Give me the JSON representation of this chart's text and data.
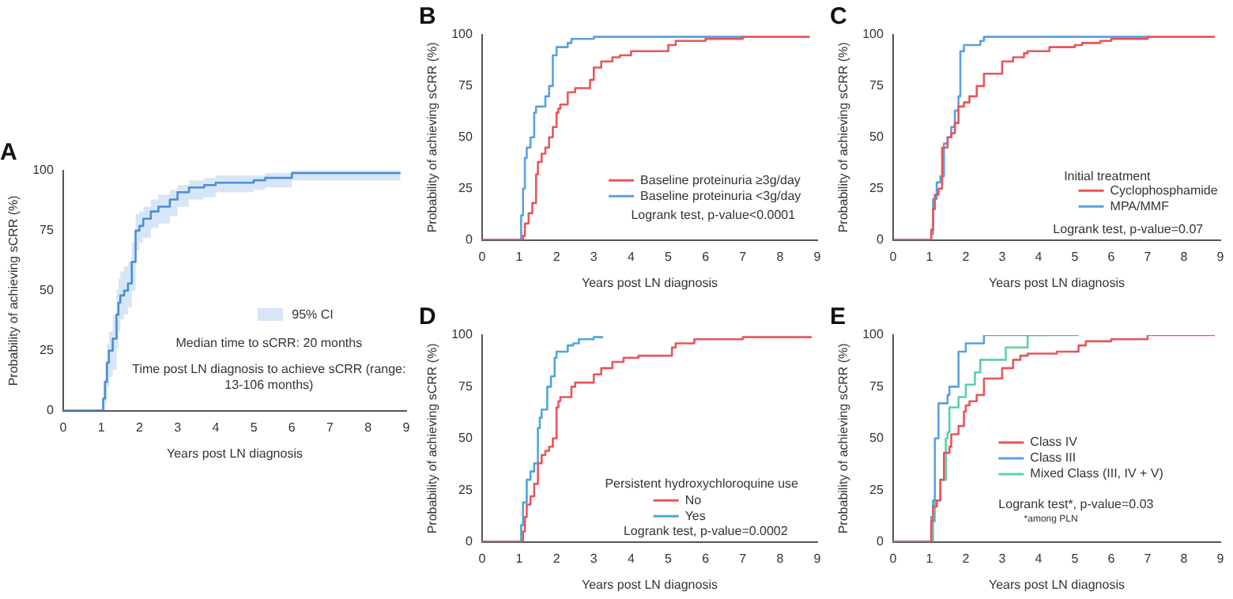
{
  "chart_data": [
    {
      "type": "step",
      "title": "A",
      "xlabel": "Years post LN diagnosis",
      "ylabel": "Probability of achieving sCRR (%)",
      "xlim": [
        0,
        9
      ],
      "xticks": [
        0,
        1,
        2,
        3,
        4,
        5,
        6,
        7,
        8,
        9
      ],
      "ylim": [
        0,
        100
      ],
      "yticks": [
        0,
        25,
        50,
        75,
        100
      ],
      "grid": false,
      "annotations": [
        "95% CI",
        "Median time to sCRR: 20 months",
        "Time post LN diagnosis to achieve sCRR (range: 13-106 months)"
      ],
      "series": [
        {
          "color": "#4a8fd8",
          "x": [
            0,
            1.05,
            1.1,
            1.15,
            1.2,
            1.3,
            1.4,
            1.45,
            1.5,
            1.6,
            1.7,
            1.8,
            1.9,
            2.0,
            2.1,
            2.3,
            2.5,
            2.8,
            3.0,
            3.3,
            3.7,
            4.0,
            5.0,
            5.3,
            6.0,
            7.0,
            8.85
          ],
          "values": [
            0,
            0,
            5,
            12,
            20,
            25,
            30,
            40,
            45,
            48,
            50,
            53,
            62,
            75,
            77,
            80,
            83,
            85,
            88,
            91,
            93,
            94,
            95,
            96,
            97,
            99,
            99
          ],
          "lower": [
            0,
            0,
            0,
            3,
            10,
            14,
            17,
            26,
            33,
            38,
            40,
            43,
            50,
            67,
            70,
            72,
            76,
            78,
            81,
            85,
            88,
            89,
            91,
            92,
            93,
            96,
            96
          ],
          "upper": [
            0,
            0,
            12,
            20,
            28,
            33,
            40,
            50,
            55,
            58,
            60,
            62,
            70,
            82,
            83,
            85,
            88,
            90,
            92,
            94,
            96,
            97,
            98,
            98,
            99,
            100,
            100
          ]
        }
      ]
    },
    {
      "type": "step",
      "title": "B",
      "xlabel": "Years post LN diagnosis",
      "ylabel": "Probability of achieving sCRR (%)",
      "xlim": [
        0,
        9
      ],
      "xticks": [
        0,
        1,
        2,
        3,
        4,
        5,
        6,
        7,
        8,
        9
      ],
      "ylim": [
        0,
        100
      ],
      "yticks": [
        0,
        25,
        50,
        75,
        100
      ],
      "grid": false,
      "legend": "right",
      "annotations": [
        "Logrank test, p-value<0.0001"
      ],
      "series": [
        {
          "name": "Baseline proteinuria ≥3g/day",
          "color": "#e8555a",
          "x": [
            0,
            1.1,
            1.15,
            1.25,
            1.35,
            1.45,
            1.5,
            1.6,
            1.7,
            1.8,
            1.9,
            2.0,
            2.05,
            2.1,
            2.3,
            2.5,
            2.9,
            3.0,
            3.2,
            3.5,
            3.7,
            4.0,
            5.0,
            5.2,
            6.0,
            7.0,
            8.8
          ],
          "values": [
            0,
            0,
            2,
            8,
            13,
            18,
            32,
            38,
            42,
            45,
            50,
            55,
            62,
            64,
            66,
            72,
            74,
            78,
            84,
            87,
            89,
            90,
            92,
            95,
            97,
            98,
            99
          ]
        },
        {
          "name": "Baseline proteinuria <3g/day",
          "color": "#5aa0e0",
          "x": [
            0,
            1.05,
            1.1,
            1.15,
            1.2,
            1.3,
            1.4,
            1.45,
            1.7,
            1.8,
            1.9,
            2.0,
            2.3,
            2.4,
            3.0,
            7.0
          ],
          "values": [
            0,
            0,
            12,
            25,
            40,
            45,
            50,
            62,
            65,
            70,
            75,
            90,
            94,
            96,
            98,
            99
          ]
        }
      ]
    },
    {
      "type": "step",
      "title": "C",
      "xlabel": "Years post LN diagnosis",
      "ylabel": "Probability of achieving sCRR (%)",
      "xlim": [
        0,
        9
      ],
      "xticks": [
        0,
        1,
        2,
        3,
        4,
        5,
        6,
        7,
        8,
        9
      ],
      "ylim": [
        0,
        100
      ],
      "yticks": [
        0,
        25,
        50,
        75,
        100
      ],
      "grid": false,
      "legend": "right",
      "legend_title": "Initial treatment",
      "annotations": [
        "Logrank test, p-value=0.07"
      ],
      "series": [
        {
          "name": "Cyclophosphamide",
          "color": "#e8555a",
          "x": [
            0,
            1.05,
            1.1,
            1.15,
            1.25,
            1.35,
            1.5,
            1.6,
            1.7,
            1.8,
            1.95,
            2.1,
            2.3,
            2.5,
            3.0,
            3.3,
            3.6,
            3.7,
            4.3,
            5.0,
            5.2,
            5.7,
            6.0,
            7.0,
            8.85
          ],
          "values": [
            0,
            0,
            5,
            15,
            22,
            25,
            45,
            50,
            52,
            57,
            65,
            67,
            70,
            75,
            81,
            87,
            89,
            91,
            92,
            94,
            95,
            96,
            97,
            98,
            99
          ]
        },
        {
          "name": "MPA/MMF",
          "color": "#5aa0e0",
          "x": [
            0,
            1.05,
            1.1,
            1.2,
            1.3,
            1.4,
            1.5,
            1.6,
            1.7,
            1.8,
            1.85,
            1.95,
            2.4,
            2.5,
            7.0
          ],
          "values": [
            0,
            0,
            3,
            20,
            28,
            31,
            47,
            50,
            55,
            63,
            70,
            92,
            95,
            97,
            99
          ]
        }
      ]
    },
    {
      "type": "step",
      "title": "D",
      "xlabel": "Years post LN diagnosis",
      "ylabel": "Probability of achieving sCRR (%)",
      "xlim": [
        0,
        9
      ],
      "xticks": [
        0,
        1,
        2,
        3,
        4,
        5,
        6,
        7,
        8,
        9
      ],
      "ylim": [
        0,
        100
      ],
      "yticks": [
        0,
        25,
        50,
        75,
        100
      ],
      "grid": false,
      "legend": "right",
      "legend_title": "Persistent hydroxychloroquine use",
      "annotations": [
        "Logrank test, p-value=0.0002"
      ],
      "series": [
        {
          "name": "No",
          "color": "#e8555a",
          "x": [
            0,
            1.1,
            1.15,
            1.2,
            1.3,
            1.4,
            1.5,
            1.6,
            1.7,
            1.8,
            1.9,
            2.0,
            2.05,
            2.1,
            2.4,
            2.5,
            3.0,
            3.2,
            3.5,
            3.8,
            4.2,
            5.1,
            5.2,
            5.7,
            7.0,
            8.85
          ],
          "values": [
            0,
            0,
            5,
            12,
            18,
            22,
            28,
            38,
            42,
            44,
            46,
            50,
            65,
            68,
            70,
            75,
            77,
            81,
            84,
            87,
            89,
            90,
            94,
            96,
            98,
            99
          ]
        },
        {
          "name": "Yes",
          "color": "#4aa8d8",
          "x": [
            0,
            1.05,
            1.1,
            1.2,
            1.3,
            1.4,
            1.5,
            1.55,
            1.6,
            1.75,
            1.85,
            1.95,
            2.0,
            2.3,
            2.45,
            2.6,
            3.0,
            3.25
          ],
          "values": [
            0,
            0,
            8,
            19,
            30,
            34,
            38,
            55,
            60,
            64,
            75,
            80,
            89,
            92,
            95,
            96,
            98,
            99
          ]
        }
      ]
    },
    {
      "type": "step",
      "title": "E",
      "xlabel": "Years post LN diagnosis",
      "ylabel": "Probability of achieving sCRR (%)",
      "xlim": [
        0,
        9
      ],
      "xticks": [
        0,
        1,
        2,
        3,
        4,
        5,
        6,
        7,
        8,
        9
      ],
      "ylim": [
        0,
        100
      ],
      "yticks": [
        0,
        25,
        50,
        75,
        100
      ],
      "grid": false,
      "legend": "right",
      "annotations": [
        "Logrank test*, p-value=0.03",
        "*among PLN"
      ],
      "series": [
        {
          "name": "Class IV",
          "color": "#e8555a",
          "x": [
            0,
            1.05,
            1.1,
            1.2,
            1.3,
            1.4,
            1.55,
            1.6,
            1.8,
            1.95,
            2.0,
            2.1,
            2.3,
            2.5,
            3.0,
            3.3,
            3.5,
            3.7,
            4.5,
            5.1,
            5.3,
            6.0,
            7.0,
            8.85
          ],
          "values": [
            0,
            0,
            10,
            17,
            20,
            30,
            43,
            46,
            52,
            56,
            63,
            66,
            68,
            71,
            79,
            84,
            88,
            90,
            91,
            92,
            95,
            97,
            98,
            100
          ]
        },
        {
          "name": "Class III",
          "color": "#5aa0e0",
          "x": [
            0,
            1.05,
            1.1,
            1.15,
            1.25,
            1.5,
            1.55,
            1.8,
            2.0,
            2.5,
            5.1
          ],
          "values": [
            0,
            0,
            12,
            20,
            50,
            67,
            71,
            75,
            92,
            96,
            100
          ]
        },
        {
          "name": "Mixed Class (III, IV + V)",
          "color": "#5ed0a8",
          "x": [
            0,
            1.1,
            1.15,
            1.3,
            1.45,
            1.5,
            1.55,
            1.8,
            2.0,
            2.25,
            2.4,
            3.1,
            3.7,
            4.25
          ],
          "values": [
            0,
            0,
            10,
            20,
            30,
            50,
            53,
            65,
            70,
            76,
            82,
            88,
            94,
            100
          ]
        }
      ]
    }
  ]
}
